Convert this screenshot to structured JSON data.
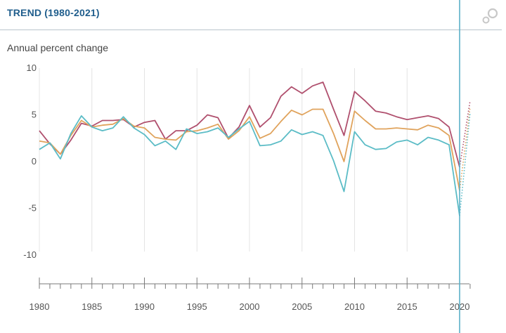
{
  "header": {
    "title": "TREND (1980-2021)"
  },
  "icons": {
    "settings": "gear-icon"
  },
  "chart_data": {
    "type": "line",
    "title": "TREND (1980-2021)",
    "ylabel": "Annual percent change",
    "xlabel": "",
    "xlim": [
      1980,
      2021
    ],
    "ylim": [
      -13,
      10
    ],
    "x_ticks": [
      1980,
      1985,
      1990,
      1995,
      2000,
      2005,
      2010,
      2015,
      2020
    ],
    "y_ticks": [
      10,
      5,
      0,
      -5,
      -10
    ],
    "grid": "vertical",
    "legend": "none",
    "marker_year": 2020,
    "x": [
      1980,
      1981,
      1982,
      1983,
      1984,
      1985,
      1986,
      1987,
      1988,
      1989,
      1990,
      1991,
      1992,
      1993,
      1994,
      1995,
      1996,
      1997,
      1998,
      1999,
      2000,
      2001,
      2002,
      2003,
      2004,
      2005,
      2006,
      2007,
      2008,
      2009,
      2010,
      2011,
      2012,
      2013,
      2014,
      2015,
      2016,
      2017,
      2018,
      2019,
      2020
    ],
    "series": [
      {
        "color": "#b0506e",
        "values": [
          3.3,
          1.9,
          0.8,
          2.3,
          4.1,
          3.8,
          4.4,
          4.4,
          4.5,
          3.7,
          4.2,
          4.4,
          2.4,
          3.3,
          3.3,
          3.9,
          5.0,
          4.7,
          2.5,
          3.7,
          6.0,
          3.7,
          4.7,
          7.0,
          8.0,
          7.3,
          8.1,
          8.5,
          5.6,
          2.8,
          7.5,
          6.5,
          5.4,
          5.2,
          4.8,
          4.5,
          4.7,
          4.9,
          4.6,
          3.7,
          -0.6
        ]
      },
      {
        "color": "#e0a35c",
        "values": [
          2.2,
          2.0,
          0.8,
          2.8,
          4.4,
          3.7,
          3.9,
          4.0,
          4.6,
          3.8,
          3.6,
          2.6,
          2.4,
          2.3,
          3.2,
          3.3,
          3.6,
          4.0,
          2.4,
          3.3,
          4.8,
          2.5,
          3.0,
          4.3,
          5.5,
          5.0,
          5.6,
          5.6,
          3.0,
          0.0,
          5.4,
          4.4,
          3.5,
          3.5,
          3.6,
          3.5,
          3.4,
          3.9,
          3.6,
          2.8,
          -3.1
        ]
      },
      {
        "color": "#5bbcc6",
        "values": [
          1.3,
          2.0,
          0.3,
          3.0,
          4.9,
          3.7,
          3.3,
          3.6,
          4.8,
          3.6,
          2.9,
          1.7,
          2.2,
          1.3,
          3.5,
          3.0,
          3.2,
          3.6,
          2.6,
          3.5,
          4.3,
          1.7,
          1.8,
          2.2,
          3.4,
          2.9,
          3.2,
          2.8,
          0.1,
          -3.2,
          3.2,
          1.8,
          1.3,
          1.4,
          2.1,
          2.3,
          1.8,
          2.6,
          2.3,
          1.8,
          -5.8
        ]
      }
    ],
    "projection": [
      {
        "color": "#b0506e",
        "x": [
          2020,
          2021
        ],
        "values": [
          -0.6,
          6.5
        ]
      },
      {
        "color": "#e0a35c",
        "x": [
          2020,
          2021
        ],
        "values": [
          -3.1,
          5.8
        ]
      },
      {
        "color": "#5bbcc6",
        "x": [
          2020,
          2021
        ],
        "values": [
          -5.8,
          5.2
        ]
      }
    ]
  }
}
